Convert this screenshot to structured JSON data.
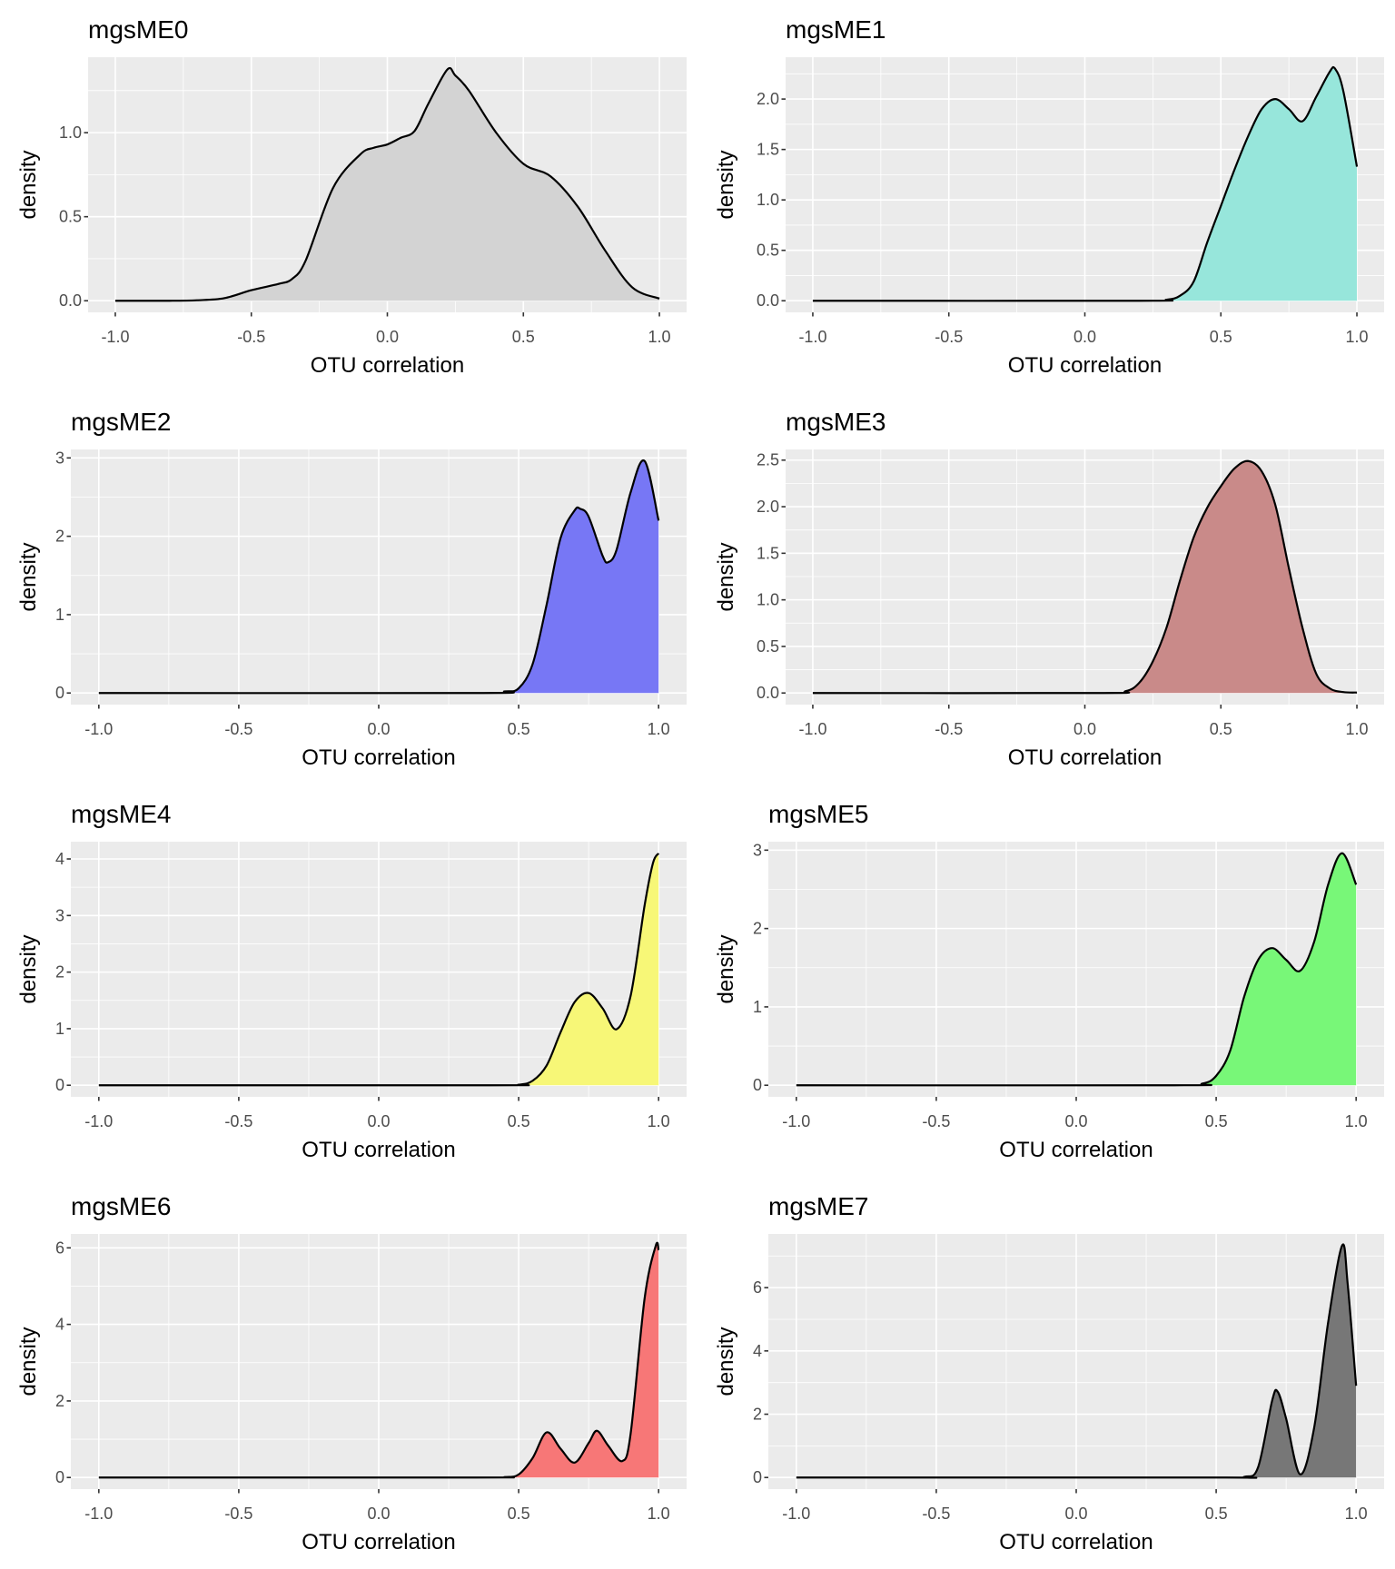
{
  "chart_data": [
    {
      "type": "area",
      "title": "mgsME0",
      "xlabel": "OTU correlation",
      "ylabel": "density",
      "fill": "#d3d3d3",
      "xlim": [
        -1,
        1
      ],
      "xticks": [
        "-1.0",
        "-0.5",
        "0.0",
        "0.5",
        "1.0"
      ],
      "yticks": [
        "0.0",
        "0.5",
        "1.0"
      ],
      "ymax": 1.38,
      "x": [
        -1,
        -0.8,
        -0.7,
        -0.6,
        -0.5,
        -0.4,
        -0.35,
        -0.3,
        -0.2,
        -0.1,
        -0.05,
        0,
        0.05,
        0.1,
        0.15,
        0.22,
        0.25,
        0.3,
        0.4,
        0.5,
        0.6,
        0.7,
        0.8,
        0.9,
        1.0
      ],
      "y": [
        0,
        0,
        0.003,
        0.015,
        0.063,
        0.1,
        0.13,
        0.24,
        0.67,
        0.87,
        0.91,
        0.93,
        0.97,
        1.01,
        1.17,
        1.375,
        1.34,
        1.25,
        1.0,
        0.815,
        0.74,
        0.56,
        0.3,
        0.08,
        0.013
      ]
    },
    {
      "type": "area",
      "title": "mgsME1",
      "xlabel": "OTU correlation",
      "ylabel": "density",
      "fill": "#97e6db",
      "xlim": [
        -1,
        1
      ],
      "xticks": [
        "-1.0",
        "-0.5",
        "0.0",
        "0.5",
        "1.0"
      ],
      "yticks": [
        "0.0",
        "0.5",
        "1.0",
        "1.5",
        "2.0"
      ],
      "ymax": 2.3,
      "x": [
        -1,
        0.2,
        0.3,
        0.35,
        0.4,
        0.45,
        0.5,
        0.55,
        0.6,
        0.65,
        0.7,
        0.75,
        0.8,
        0.85,
        0.9,
        0.92,
        0.95,
        1.0
      ],
      "y": [
        0,
        0,
        0.01,
        0.05,
        0.19,
        0.58,
        0.94,
        1.3,
        1.63,
        1.9,
        2.0,
        1.9,
        1.78,
        2.02,
        2.27,
        2.3,
        2.08,
        1.33
      ]
    },
    {
      "type": "area",
      "title": "mgsME2",
      "xlabel": "OTU correlation",
      "ylabel": "density",
      "fill": "#7777f5",
      "xlim": [
        -1,
        1
      ],
      "xticks": [
        "-1.0",
        "-0.5",
        "0.0",
        "0.5",
        "1.0"
      ],
      "yticks": [
        "0",
        "1",
        "2",
        "3"
      ],
      "ymax": 2.96,
      "x": [
        -1,
        0.35,
        0.45,
        0.5,
        0.55,
        0.6,
        0.65,
        0.7,
        0.72,
        0.75,
        0.8,
        0.82,
        0.85,
        0.9,
        0.95,
        1.0
      ],
      "y": [
        0,
        0,
        0.02,
        0.06,
        0.37,
        1.13,
        1.98,
        2.33,
        2.35,
        2.25,
        1.75,
        1.67,
        1.83,
        2.56,
        2.96,
        2.2
      ]
    },
    {
      "type": "area",
      "title": "mgsME3",
      "xlabel": "OTU correlation",
      "ylabel": "density",
      "fill": "#c98a89",
      "xlim": [
        -1,
        1
      ],
      "xticks": [
        "-1.0",
        "-0.5",
        "0.0",
        "0.5",
        "1.0"
      ],
      "yticks": [
        "0.0",
        "0.5",
        "1.0",
        "1.5",
        "2.0",
        "2.5"
      ],
      "ymax": 2.49,
      "x": [
        -1,
        0.05,
        0.15,
        0.2,
        0.25,
        0.3,
        0.35,
        0.4,
        0.45,
        0.5,
        0.55,
        0.6,
        0.65,
        0.7,
        0.75,
        0.8,
        0.85,
        0.9,
        0.95,
        1.0
      ],
      "y": [
        0,
        0,
        0.02,
        0.11,
        0.34,
        0.7,
        1.21,
        1.67,
        1.99,
        2.22,
        2.41,
        2.49,
        2.38,
        2.02,
        1.34,
        0.7,
        0.21,
        0.05,
        0.01,
        0.005
      ]
    },
    {
      "type": "area",
      "title": "mgsME4",
      "xlabel": "OTU correlation",
      "ylabel": "density",
      "fill": "#f7f777",
      "xlim": [
        -1,
        1
      ],
      "xticks": [
        "-1.0",
        "-0.5",
        "0.0",
        "0.5",
        "1.0"
      ],
      "yticks": [
        "0",
        "1",
        "2",
        "3",
        "4"
      ],
      "ymax": 4.1,
      "x": [
        -1,
        0.4,
        0.5,
        0.55,
        0.6,
        0.65,
        0.7,
        0.75,
        0.8,
        0.85,
        0.9,
        0.95,
        0.98,
        1.0
      ],
      "y": [
        0,
        0,
        0.01,
        0.08,
        0.35,
        0.94,
        1.47,
        1.63,
        1.36,
        0.99,
        1.58,
        3.18,
        3.93,
        4.1
      ]
    },
    {
      "type": "area",
      "title": "mgsME5",
      "xlabel": "OTU correlation",
      "ylabel": "density",
      "fill": "#78f778",
      "xlim": [
        -1,
        1
      ],
      "xticks": [
        "-1.0",
        "-0.5",
        "0.0",
        "0.5",
        "1.0"
      ],
      "yticks": [
        "0",
        "1",
        "2",
        "3"
      ],
      "ymax": 2.96,
      "x": [
        -1,
        0.35,
        0.45,
        0.5,
        0.55,
        0.6,
        0.65,
        0.7,
        0.75,
        0.8,
        0.85,
        0.9,
        0.95,
        1.0
      ],
      "y": [
        0,
        0,
        0.02,
        0.12,
        0.44,
        1.13,
        1.6,
        1.75,
        1.6,
        1.46,
        1.83,
        2.56,
        2.96,
        2.56
      ]
    },
    {
      "type": "area",
      "title": "mgsME6",
      "xlabel": "OTU correlation",
      "ylabel": "density",
      "fill": "#f77777",
      "xlim": [
        -1,
        1
      ],
      "xticks": [
        "-1.0",
        "-0.5",
        "0.0",
        "0.5",
        "1.0"
      ],
      "yticks": [
        "0",
        "2",
        "4",
        "6"
      ],
      "ymax": 6.06,
      "x": [
        -1,
        0.35,
        0.45,
        0.5,
        0.55,
        0.6,
        0.65,
        0.7,
        0.75,
        0.78,
        0.82,
        0.87,
        0.9,
        0.95,
        0.99,
        1.0
      ],
      "y": [
        0,
        0,
        0.01,
        0.08,
        0.51,
        1.18,
        0.75,
        0.39,
        0.9,
        1.22,
        0.83,
        0.43,
        1.14,
        4.68,
        6.06,
        5.94
      ]
    },
    {
      "type": "area",
      "title": "mgsME7",
      "xlabel": "OTU correlation",
      "ylabel": "density",
      "fill": "#777777",
      "xlim": [
        -1,
        1
      ],
      "xticks": [
        "-1.0",
        "-0.5",
        "0.0",
        "0.5",
        "1.0"
      ],
      "yticks": [
        "0",
        "2",
        "4",
        "6"
      ],
      "ymax": 7.33,
      "x": [
        -1,
        0.5,
        0.6,
        0.65,
        0.7,
        0.72,
        0.75,
        0.8,
        0.85,
        0.9,
        0.95,
        0.97,
        1.0
      ],
      "y": [
        0,
        0,
        0.02,
        0.33,
        2.43,
        2.71,
        1.86,
        0.1,
        1.57,
        4.9,
        7.33,
        6.1,
        2.9
      ]
    }
  ]
}
